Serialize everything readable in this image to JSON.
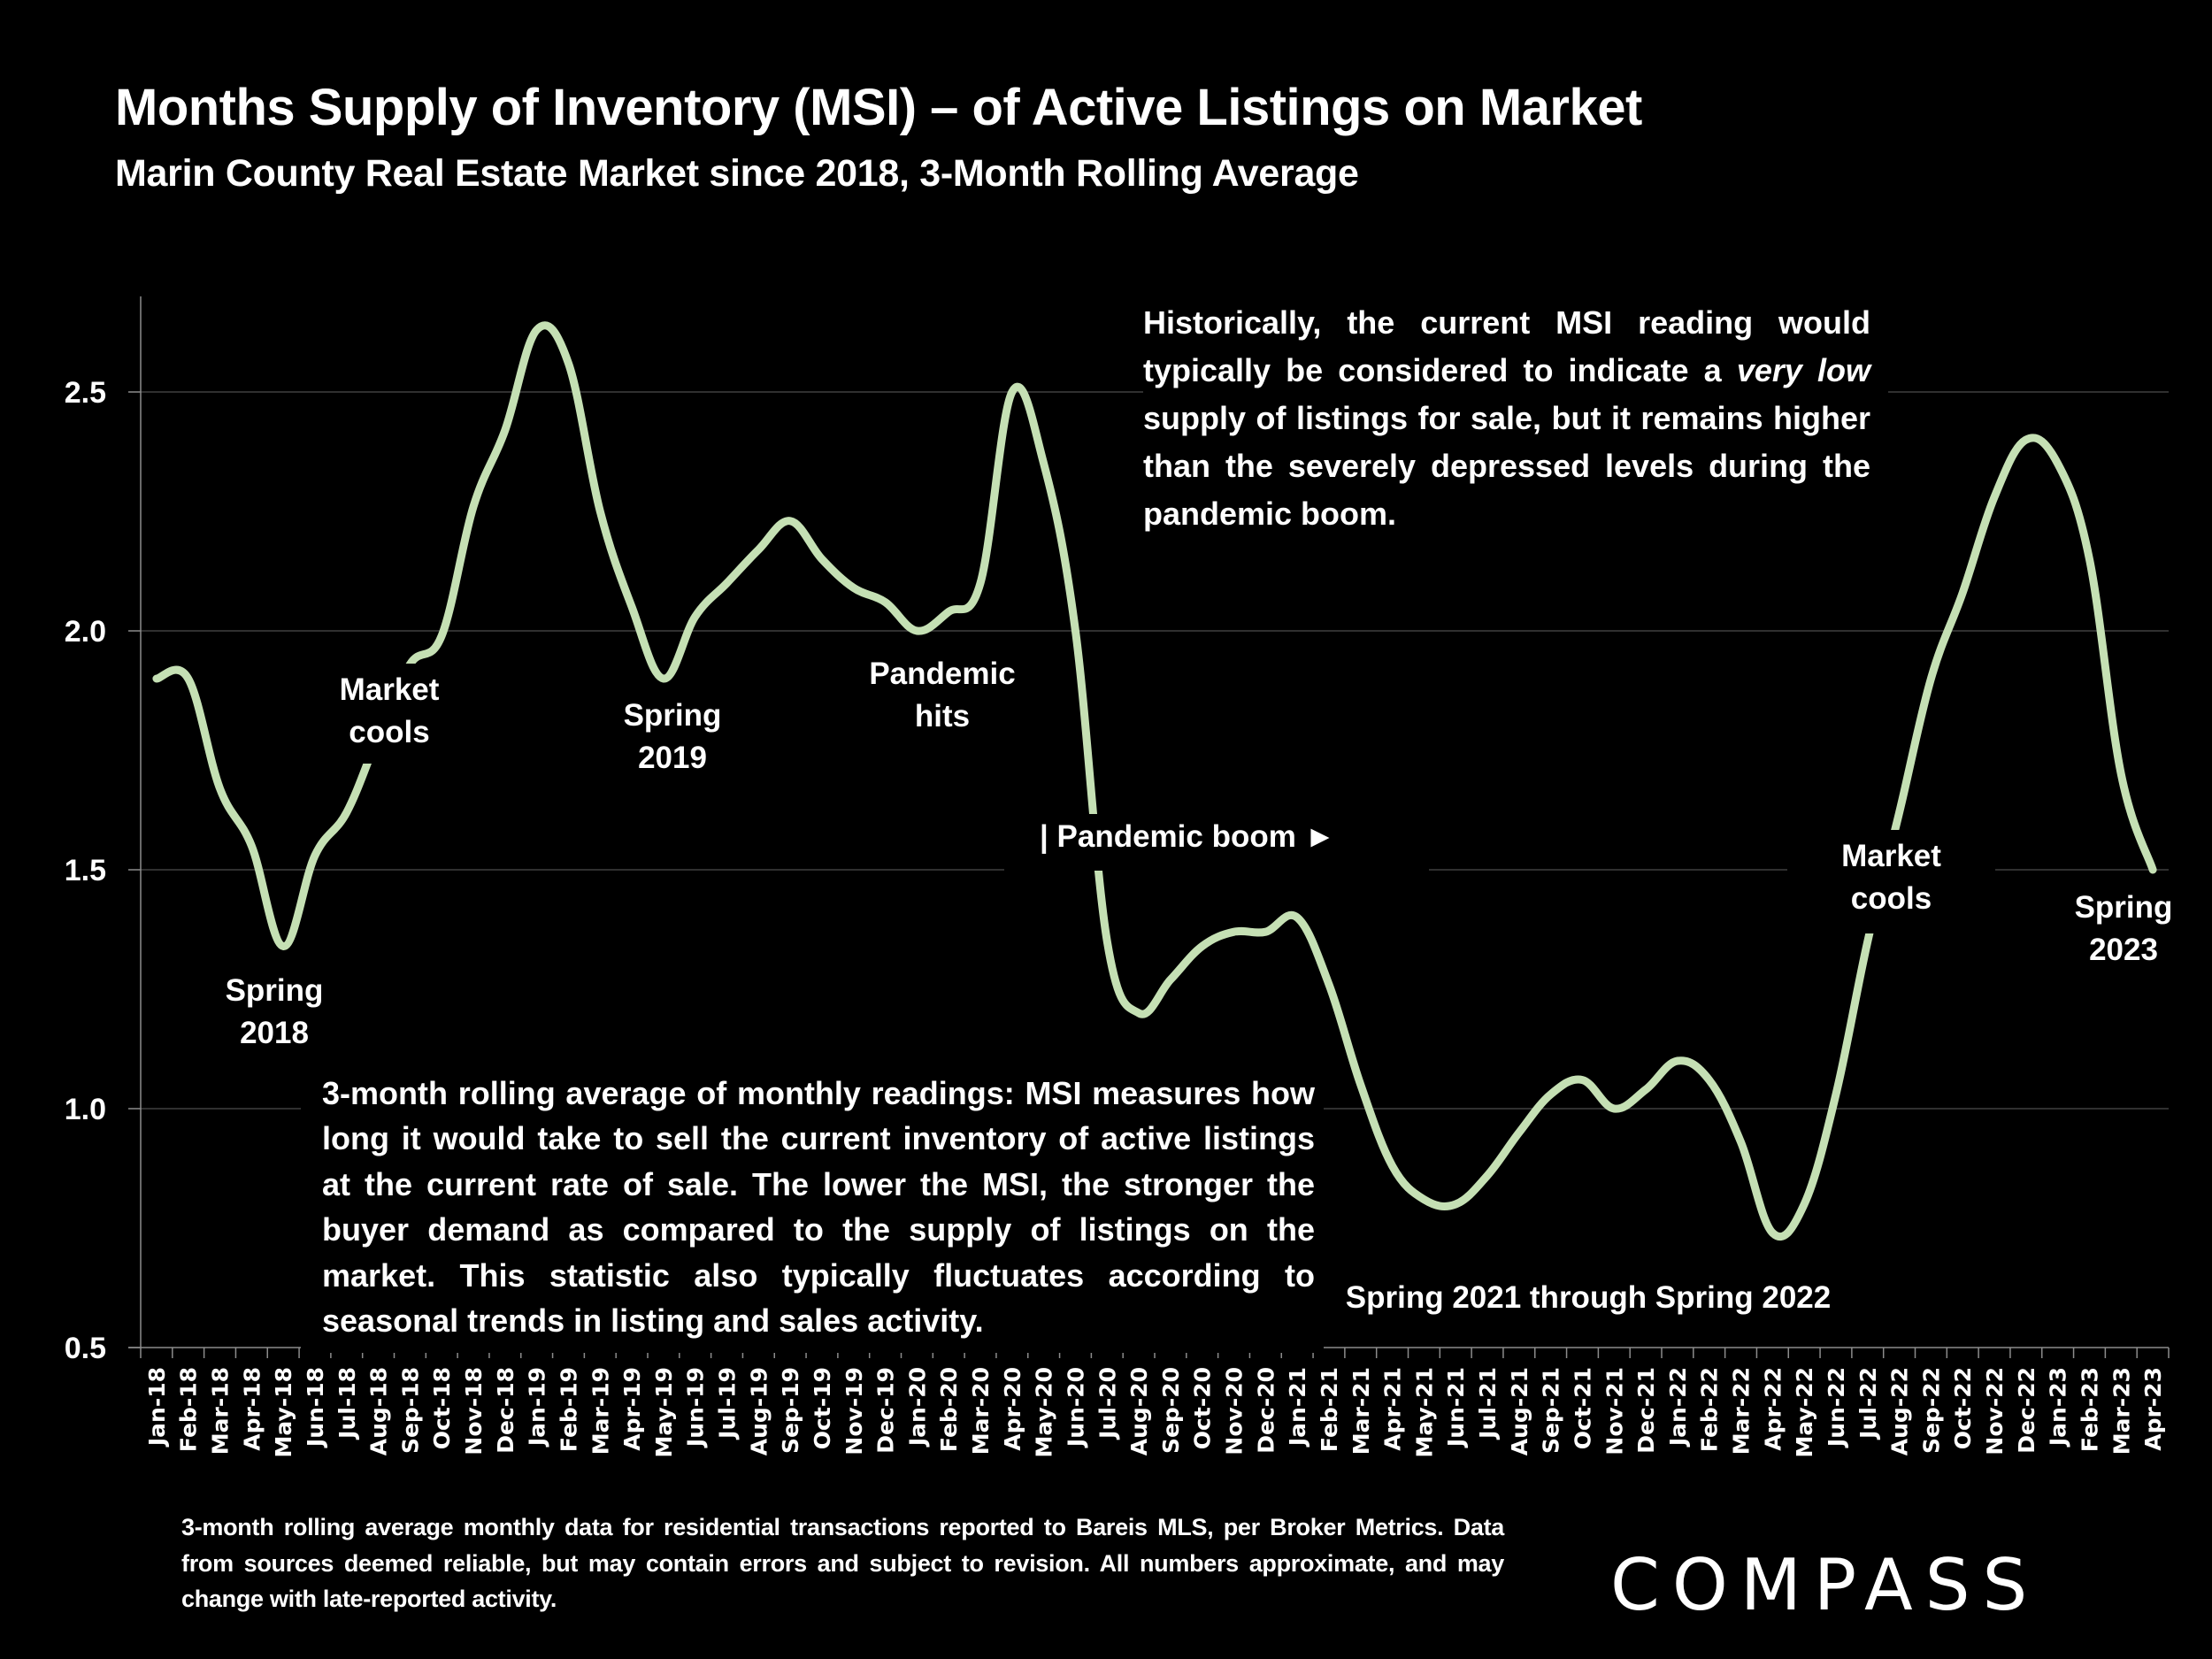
{
  "header": {
    "title": "Months Supply of Inventory (MSI) – of Active Listings on Market",
    "subtitle": "Marin County Real Estate Market since 2018, 3-Month Rolling Average"
  },
  "annotations": {
    "spring_2018": [
      "Spring",
      "2018"
    ],
    "market_cools_2018": [
      "Market",
      "cools"
    ],
    "spring_2019": [
      "Spring",
      "2019"
    ],
    "pandemic_hits": [
      "Pandemic",
      "hits"
    ],
    "pandemic_boom": "| Pandemic boom ►",
    "spring_2021_2022": "Spring 2021 through Spring 2022",
    "market_cools_2022": [
      "Market",
      "cools"
    ],
    "spring_2023": [
      "Spring",
      "2023"
    ]
  },
  "notes": {
    "historical": {
      "before": "Historically, the current MSI reading would typically be considered to indicate a ",
      "emphasis": "very low",
      "after": " supply of listings for sale, but it remains higher than the severely depressed levels during the pandemic boom."
    },
    "definition": "3-month rolling average of monthly readings: MSI measures how long it would take to sell the current inventory of active listings at the current rate of sale. The lower the MSI, the stronger the buyer demand as compared to the supply of listings on the market. This statistic also typically fluctuates according to seasonal trends in listing and sales activity."
  },
  "footnote": "3-month rolling average monthly data for residential transactions reported to Bareis MLS, per Broker Metrics. Data from sources deemed reliable, but may contain errors and subject to revision. All numbers approximate, and may change with late-reported activity.",
  "brand": {
    "logo_text": "COMPASS"
  },
  "colors": {
    "background": "#000000",
    "line": "#c5e0b4",
    "text": "#ffffff",
    "grid": "#404040",
    "axis": "#8c8c8c"
  },
  "chart_data": {
    "type": "line",
    "title": "Months Supply of Inventory (MSI) – of Active Listings on Market",
    "subtitle": "Marin County Real Estate Market since 2018, 3-Month Rolling Average",
    "xlabel": "",
    "ylabel": "",
    "ylim": [
      0.5,
      2.7
    ],
    "yticks": [
      "0.5",
      "1.0",
      "1.5",
      "2.0",
      "2.5"
    ],
    "ytick_values": [
      0.5,
      1.0,
      1.5,
      2.0,
      2.5
    ],
    "grid": true,
    "legend": "none",
    "categories": [
      "Jan-18",
      "Feb-18",
      "Mar-18",
      "Apr-18",
      "May-18",
      "Jun-18",
      "Jul-18",
      "Aug-18",
      "Sep-18",
      "Oct-18",
      "Nov-18",
      "Dec-18",
      "Jan-19",
      "Feb-19",
      "Mar-19",
      "Apr-19",
      "May-19",
      "Jun-19",
      "Jul-19",
      "Aug-19",
      "Sep-19",
      "Oct-19",
      "Nov-19",
      "Dec-19",
      "Jan-20",
      "Feb-20",
      "Mar-20",
      "Apr-20",
      "May-20",
      "Jun-20",
      "Jul-20",
      "Aug-20",
      "Sep-20",
      "Oct-20",
      "Nov-20",
      "Dec-20",
      "Jan-21",
      "Feb-21",
      "Mar-21",
      "Apr-21",
      "May-21",
      "Jun-21",
      "Jul-21",
      "Aug-21",
      "Sep-21",
      "Oct-21",
      "Nov-21",
      "Dec-21",
      "Jan-22",
      "Feb-22",
      "Mar-22",
      "Apr-22",
      "May-22",
      "Jun-22",
      "Jul-22",
      "Aug-22",
      "Sep-22",
      "Oct-22",
      "Nov-22",
      "Dec-22",
      "Jan-23",
      "Feb-23",
      "Mar-23",
      "Apr-23"
    ],
    "series": [
      {
        "name": "MSI (3-month rolling average)",
        "values": [
          1.9,
          1.9,
          1.67,
          1.55,
          1.34,
          1.53,
          1.62,
          1.78,
          1.93,
          1.99,
          2.26,
          2.42,
          2.63,
          2.56,
          2.25,
          2.05,
          1.9,
          2.03,
          2.1,
          2.17,
          2.23,
          2.15,
          2.09,
          2.06,
          2.0,
          2.04,
          2.1,
          2.5,
          2.35,
          2.0,
          1.35,
          1.2,
          1.27,
          1.34,
          1.37,
          1.37,
          1.4,
          1.26,
          1.05,
          0.88,
          0.81,
          0.8,
          0.86,
          0.95,
          1.03,
          1.06,
          1.0,
          1.04,
          1.1,
          1.06,
          0.93,
          0.74,
          0.8,
          1.03,
          1.35,
          1.62,
          1.9,
          2.08,
          2.28,
          2.4,
          2.35,
          2.15,
          1.7,
          1.5
        ]
      }
    ]
  }
}
